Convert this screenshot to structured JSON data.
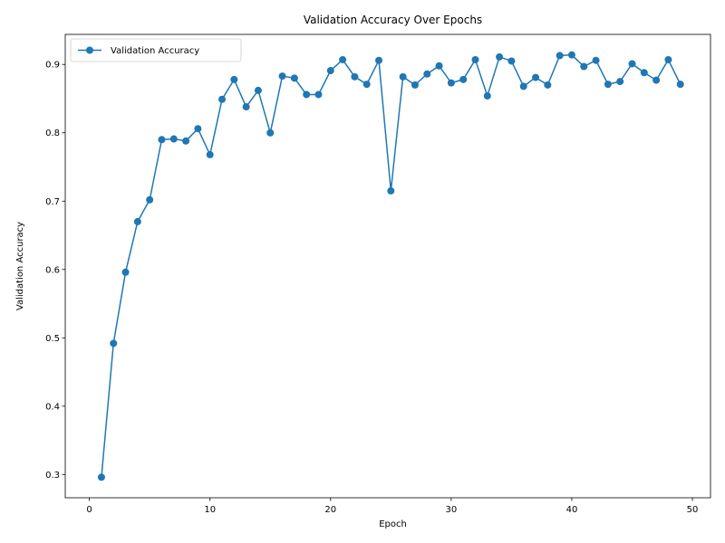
{
  "chart_data": {
    "type": "line",
    "title": "Validation Accuracy Over Epochs",
    "xlabel": "Epoch",
    "ylabel": "Validation Accuracy",
    "xlim": [
      -2,
      51.5
    ],
    "ylim": [
      0.266,
      0.944
    ],
    "xticks": [
      0,
      10,
      20,
      30,
      40,
      50
    ],
    "yticks": [
      0.3,
      0.4,
      0.5,
      0.6,
      0.7,
      0.8,
      0.9
    ],
    "grid": false,
    "legend_position": "upper-left",
    "series": [
      {
        "name": "Validation Accuracy",
        "color": "#1f77b4",
        "marker": "circle",
        "x": [
          1,
          2,
          3,
          4,
          5,
          6,
          7,
          8,
          9,
          10,
          11,
          12,
          13,
          14,
          15,
          16,
          17,
          18,
          19,
          20,
          21,
          22,
          23,
          24,
          25,
          26,
          27,
          28,
          29,
          30,
          31,
          32,
          33,
          34,
          35,
          36,
          37,
          38,
          39,
          40,
          41,
          42,
          43,
          44,
          45,
          46,
          47,
          48,
          49
        ],
        "y": [
          0.296,
          0.492,
          0.596,
          0.67,
          0.702,
          0.79,
          0.791,
          0.788,
          0.806,
          0.768,
          0.849,
          0.878,
          0.838,
          0.862,
          0.8,
          0.883,
          0.88,
          0.856,
          0.856,
          0.891,
          0.907,
          0.882,
          0.871,
          0.906,
          0.715,
          0.882,
          0.87,
          0.886,
          0.898,
          0.873,
          0.878,
          0.907,
          0.854,
          0.911,
          0.905,
          0.868,
          0.881,
          0.87,
          0.913,
          0.914,
          0.897,
          0.906,
          0.871,
          0.875,
          0.901,
          0.888,
          0.877,
          0.907,
          0.871
        ]
      }
    ]
  }
}
